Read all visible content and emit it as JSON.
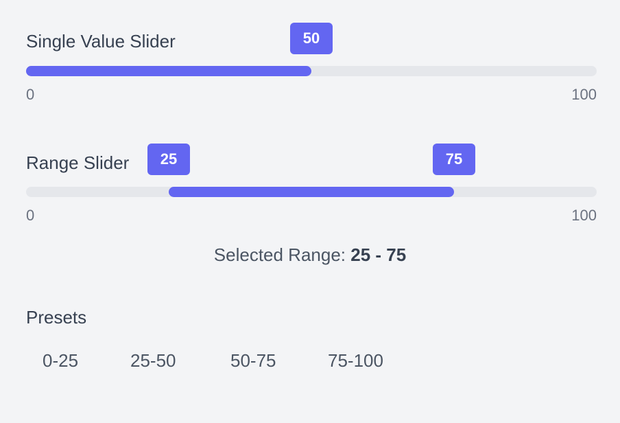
{
  "single_slider": {
    "label": "Single Value Slider",
    "value": 50,
    "value_label": "50",
    "min_label": "0",
    "max_label": "100",
    "min": 0,
    "max": 100
  },
  "range_slider": {
    "label": "Range Slider",
    "low": 25,
    "high": 75,
    "low_label": "25",
    "high_label": "75",
    "min_label": "0",
    "max_label": "100",
    "min": 0,
    "max": 100
  },
  "summary": {
    "prefix": "Selected Range: ",
    "range_text": "25 - 75"
  },
  "presets": {
    "title": "Presets",
    "items": [
      "0-25",
      "25-50",
      "50-75",
      "75-100"
    ]
  },
  "colors": {
    "accent": "#6366f1",
    "track": "#e5e7eb",
    "background": "#f3f4f6"
  }
}
